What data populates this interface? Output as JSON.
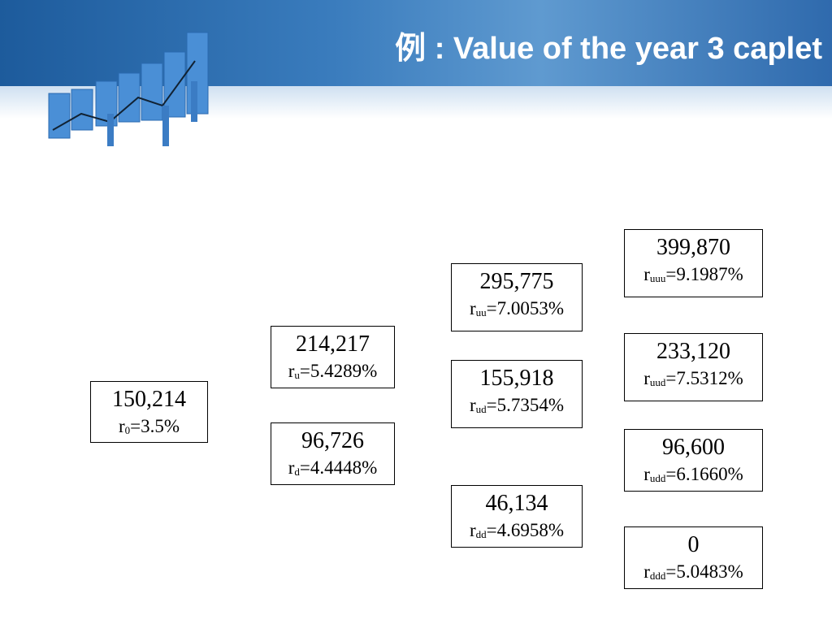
{
  "header": {
    "title": "例 : Value of the year 3 caplet"
  },
  "nodes": [
    {
      "value": "150,214",
      "rate_symbol": "r",
      "rate_subscript": "0",
      "rate_value": "=3.5%"
    },
    {
      "value": "214,217",
      "rate_symbol": "r",
      "rate_subscript": "u",
      "rate_value": "=5.4289%"
    },
    {
      "value": "96,726",
      "rate_symbol": "r",
      "rate_subscript": "d",
      "rate_value": "=4.4448%"
    },
    {
      "value": "295,775",
      "rate_symbol": "r",
      "rate_subscript": "uu",
      "rate_value": "=7.0053%"
    },
    {
      "value": "155,918",
      "rate_symbol": "r",
      "rate_subscript": "ud",
      "rate_value": "=5.7354%"
    },
    {
      "value": "46,134",
      "rate_symbol": "r",
      "rate_subscript": "dd",
      "rate_value": "=4.6958%"
    },
    {
      "value": "399,870",
      "rate_symbol": "r",
      "rate_subscript": "uuu",
      "rate_value": "=9.1987%"
    },
    {
      "value": "233,120",
      "rate_symbol": "r",
      "rate_subscript": "uud",
      "rate_value": "=7.5312%"
    },
    {
      "value": "96,600",
      "rate_symbol": "r",
      "rate_subscript": "udd",
      "rate_value": "=6.1660%"
    },
    {
      "value": "0",
      "rate_symbol": "r",
      "rate_subscript": "ddd",
      "rate_value": "=5.0483%"
    }
  ]
}
